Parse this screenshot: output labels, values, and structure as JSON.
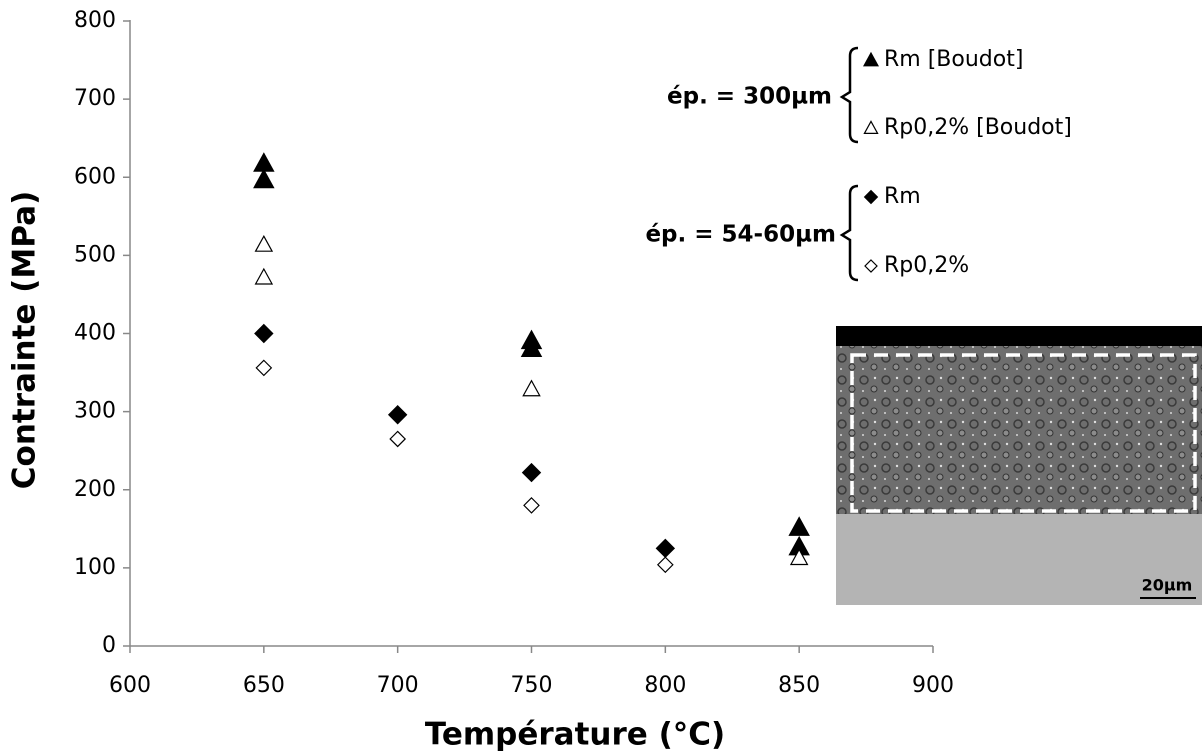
{
  "chart_data": {
    "type": "scatter",
    "xlabel": "Température (°C)",
    "ylabel": "Contrainte (MPa)",
    "xlim": [
      600,
      900
    ],
    "xticks": [
      600,
      650,
      700,
      750,
      800,
      850,
      900
    ],
    "ylim": [
      0,
      800
    ],
    "yticks": [
      0,
      100,
      200,
      300,
      400,
      500,
      600,
      700,
      800
    ],
    "grid": false,
    "series": [
      {
        "name": "Rm [Boudot]",
        "marker": "triangle",
        "filled": true,
        "color": "#000000",
        "x": [
          650,
          650,
          750,
          750,
          850,
          850
        ],
        "values": [
          618,
          597,
          391,
          381,
          152,
          127
        ]
      },
      {
        "name": "Rp0,2% [Boudot]",
        "marker": "triangle",
        "filled": false,
        "color": "#000000",
        "x": [
          650,
          650,
          750,
          850
        ],
        "values": [
          514,
          472,
          329,
          113
        ]
      },
      {
        "name": "Rm",
        "marker": "diamond",
        "filled": true,
        "color": "#000000",
        "x": [
          650,
          700,
          750,
          800
        ],
        "values": [
          400,
          296,
          222,
          125
        ]
      },
      {
        "name": "Rp0,2%",
        "marker": "diamond",
        "filled": false,
        "color": "#000000",
        "x": [
          650,
          700,
          750,
          800
        ],
        "values": [
          356,
          265,
          180,
          104
        ]
      }
    ],
    "annotations": [
      "ép. = 300µm",
      "ép. = 54-60µm"
    ],
    "inset_scale_label": "20µm"
  }
}
